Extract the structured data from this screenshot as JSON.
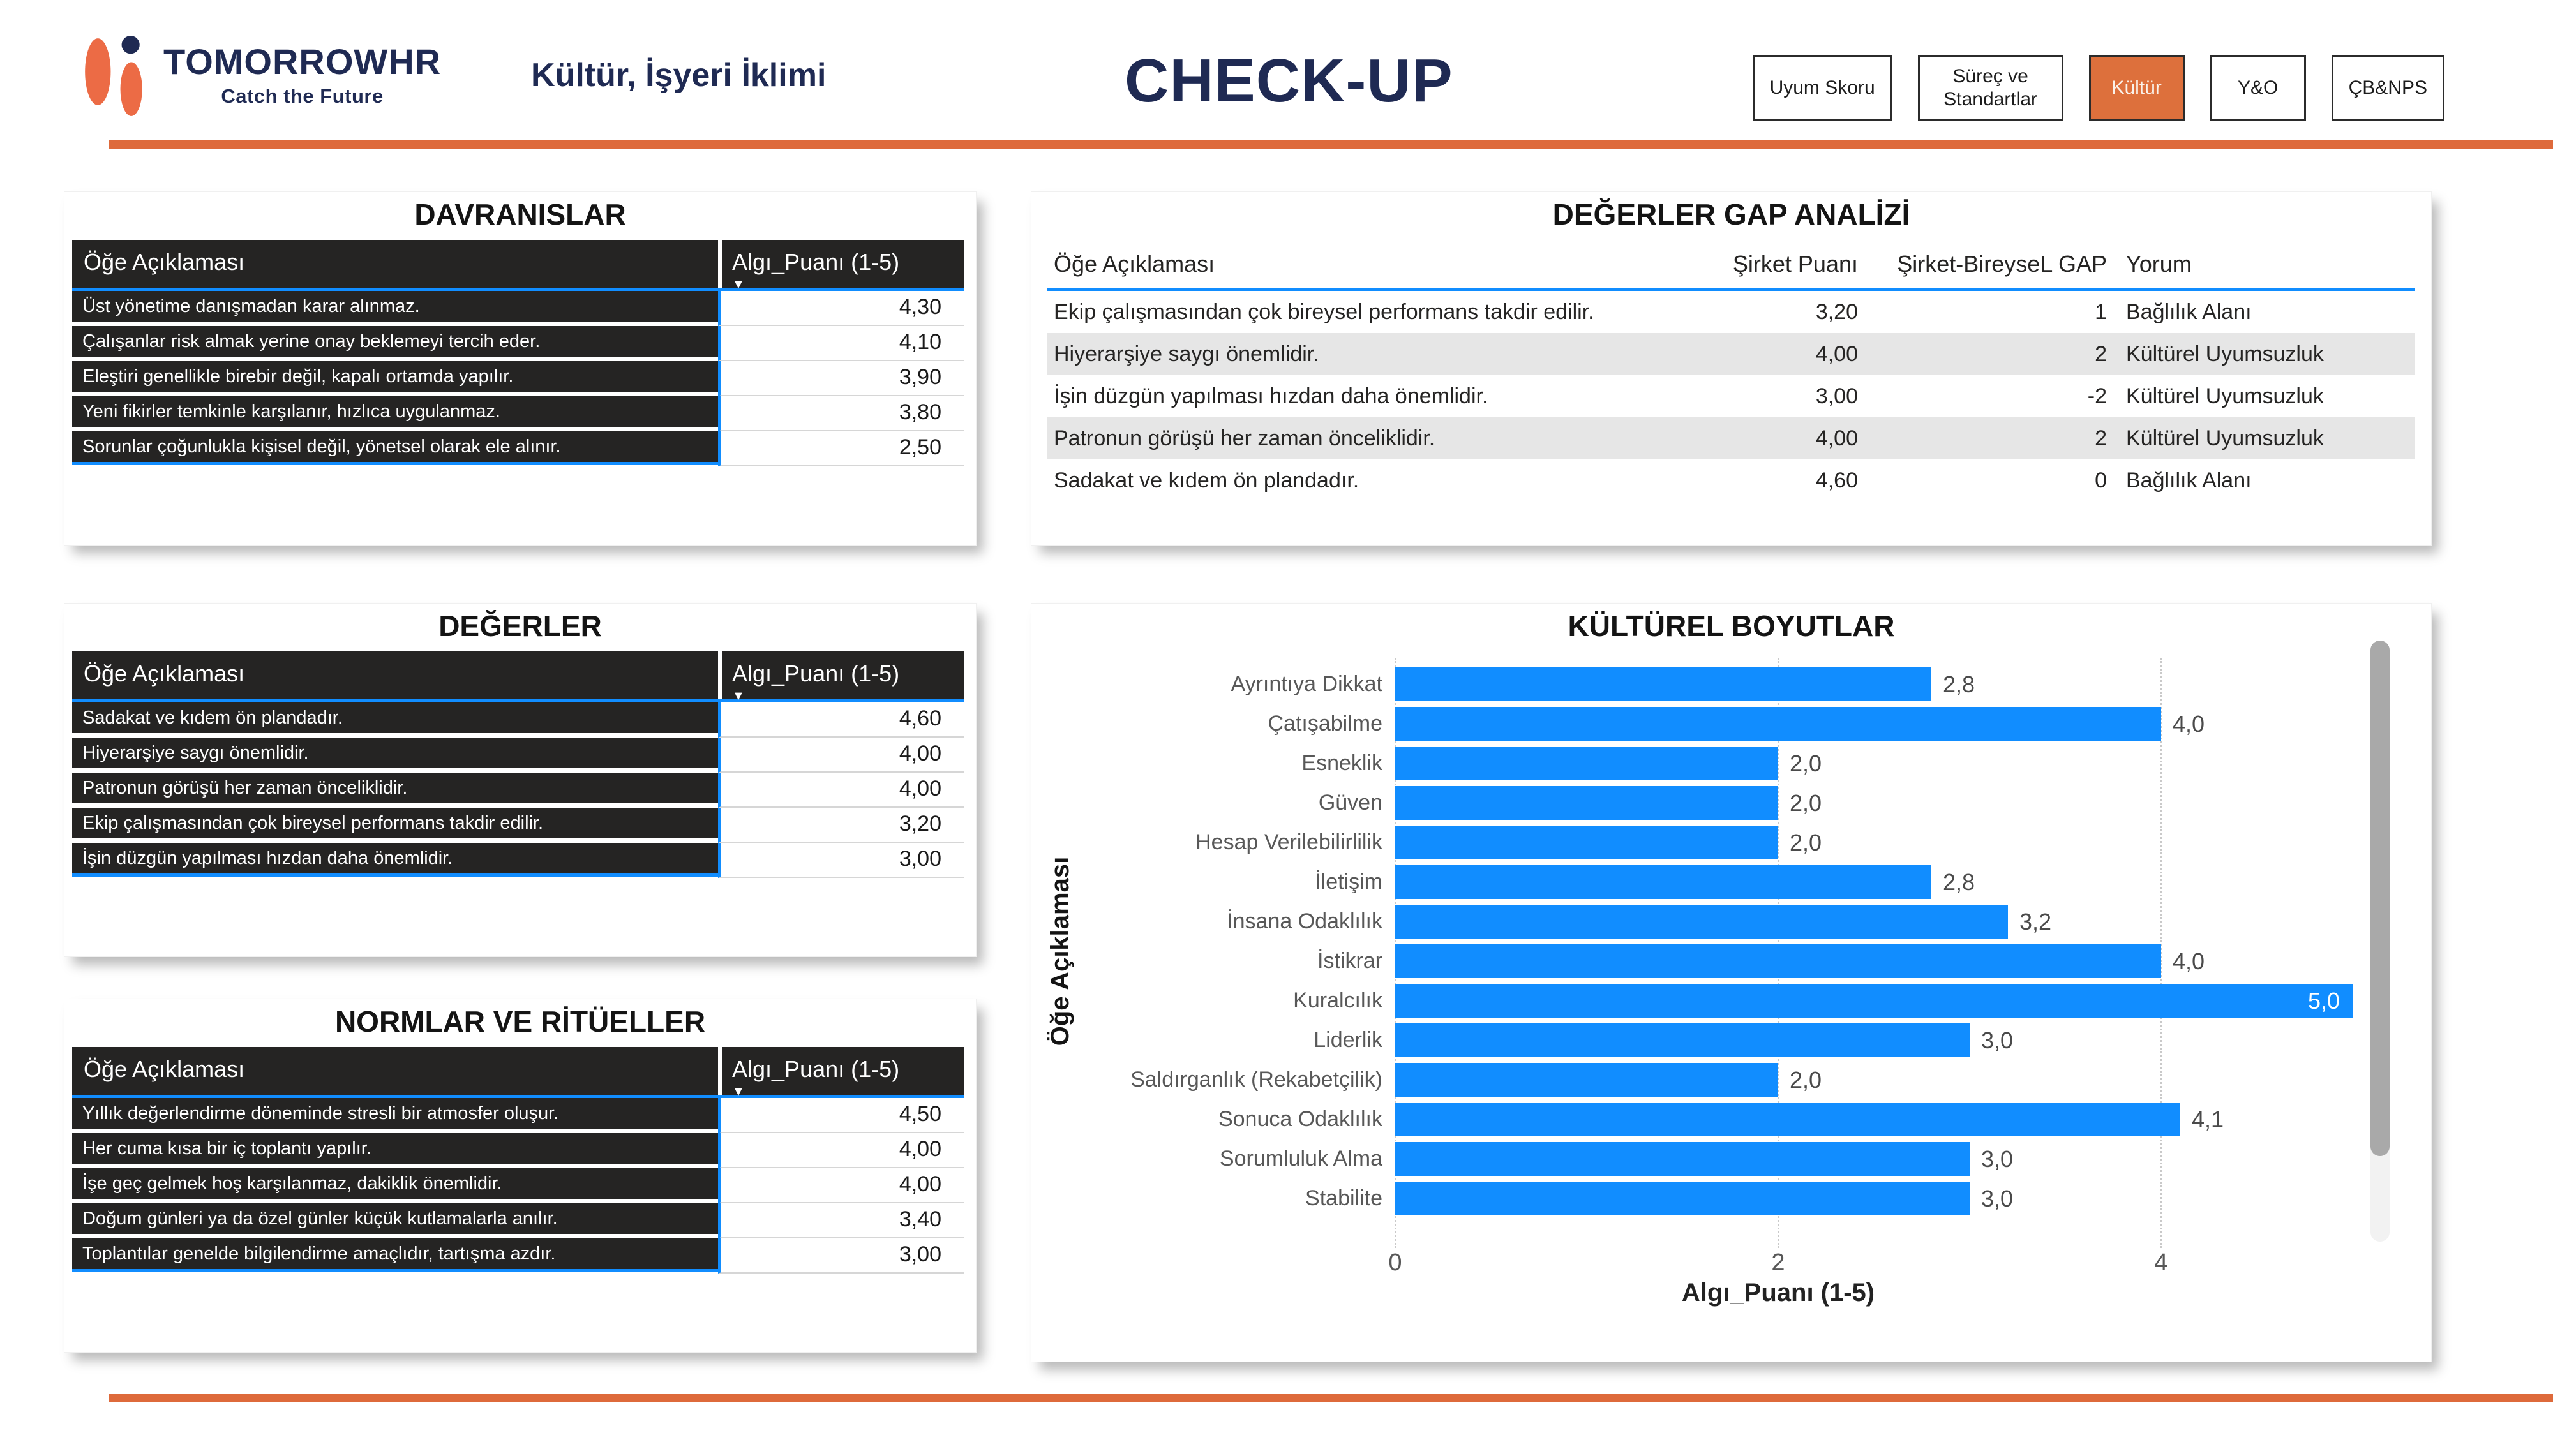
{
  "colors": {
    "navy": "#1F2A53",
    "orange": "#DE6A3B",
    "btn_orange": "#DD703C",
    "logo_orange": "#EC6B45",
    "accent_blue": "#118DFF",
    "bar_blue": "#118DFF",
    "dark_cell": "#252423",
    "alt_row": "#E6E6E6"
  },
  "header": {
    "brand": "TOMORROWHR",
    "tagline": "Catch the Future",
    "subtitle": "Kültür, İşyeri İklimi",
    "title": "CHECK-UP",
    "nav": [
      {
        "label": "Uyum Skoru",
        "active": false
      },
      {
        "label": "Süreç ve Standartlar",
        "active": false
      },
      {
        "label": "Kültür",
        "active": true
      },
      {
        "label": "Y&O",
        "active": false
      },
      {
        "label": "ÇB&NPS",
        "active": false
      }
    ]
  },
  "icons": {
    "sort_desc": "▼"
  },
  "panels": {
    "davranislar": {
      "title": "DAVRANISLAR",
      "col1": "Öğe Açıklaması",
      "col2": "Algı_Puanı (1-5)",
      "rows": [
        {
          "label": "Üst yönetime danışmadan karar alınmaz.",
          "value": "4,30"
        },
        {
          "label": "Çalışanlar risk almak yerine onay beklemeyi tercih eder.",
          "value": "4,10"
        },
        {
          "label": "Eleştiri genellikle birebir değil, kapalı ortamda yapılır.",
          "value": "3,90"
        },
        {
          "label": "Yeni fikirler temkinle karşılanır, hızlıca uygulanmaz.",
          "value": "3,80"
        },
        {
          "label": "Sorunlar çoğunlukla kişisel değil, yönetsel olarak ele alınır.",
          "value": "2,50"
        }
      ]
    },
    "degerler": {
      "title": "DEĞERLER",
      "col1": "Öğe Açıklaması",
      "col2": "Algı_Puanı (1-5)",
      "rows": [
        {
          "label": "Sadakat ve kıdem ön plandadır.",
          "value": "4,60"
        },
        {
          "label": "Hiyerarşiye saygı önemlidir.",
          "value": "4,00"
        },
        {
          "label": "Patronun görüşü her zaman önceliklidir.",
          "value": "4,00"
        },
        {
          "label": "Ekip çalışmasından çok bireysel performans takdir edilir.",
          "value": "3,20"
        },
        {
          "label": "İşin düzgün yapılması hızdan daha önemlidir.",
          "value": "3,00"
        }
      ]
    },
    "normlar": {
      "title": "NORMLAR VE RİTÜELLER",
      "col1": "Öğe Açıklaması",
      "col2": "Algı_Puanı (1-5)",
      "rows": [
        {
          "label": "Yıllık değerlendirme döneminde stresli bir atmosfer oluşur.",
          "value": "4,50"
        },
        {
          "label": "Her cuma kısa bir iç toplantı yapılır.",
          "value": "4,00"
        },
        {
          "label": "İşe geç gelmek hoş karşılanmaz, dakiklik önemlidir.",
          "value": "4,00"
        },
        {
          "label": "Doğum günleri ya da özel günler küçük kutlamalarla anılır.",
          "value": "3,40"
        },
        {
          "label": "Toplantılar genelde bilgilendirme amaçlıdır, tartışma azdır.",
          "value": "3,00"
        }
      ]
    },
    "gap": {
      "title": "DEĞERLER GAP ANALİZİ",
      "columns": [
        "Öğe Açıklaması",
        "Şirket Puanı",
        "Şirket-BireyseL GAP",
        "Yorum"
      ],
      "rows": [
        {
          "item": "Ekip çalışmasından çok bireysel performans takdir edilir.",
          "sirket": "3,20",
          "gap": "1",
          "yorum": "Bağlılık Alanı"
        },
        {
          "item": "Hiyerarşiye saygı önemlidir.",
          "sirket": "4,00",
          "gap": "2",
          "yorum": "Kültürel Uyumsuzluk"
        },
        {
          "item": "İşin düzgün yapılması hızdan daha önemlidir.",
          "sirket": "3,00",
          "gap": "-2",
          "yorum": "Kültürel Uyumsuzluk"
        },
        {
          "item": "Patronun görüşü her zaman önceliklidir.",
          "sirket": "4,00",
          "gap": "2",
          "yorum": "Kültürel Uyumsuzluk"
        },
        {
          "item": "Sadakat ve kıdem ön plandadır.",
          "sirket": "4,60",
          "gap": "0",
          "yorum": "Bağlılık Alanı"
        }
      ]
    }
  },
  "chart_data": {
    "type": "bar",
    "orientation": "horizontal",
    "title": "KÜLTÜREL BOYUTLAR",
    "xlabel": "Algı_Puanı (1-5)",
    "ylabel": "Öğe Açıklaması",
    "xlim": [
      0,
      5
    ],
    "xticks": [
      0,
      2,
      4
    ],
    "grid": "dotted-vertical",
    "bar_color": "#118DFF",
    "categories": [
      "Ayrıntıya Dikkat",
      "Çatışabilme",
      "Esneklik",
      "Güven",
      "Hesap Verilebilirlilik",
      "İletişim",
      "İnsana Odaklılık",
      "İstikrar",
      "Kuralcılık",
      "Liderlik",
      "Saldırganlık (Rekabetçilik)",
      "Sonuca Odaklılık",
      "Sorumluluk Alma",
      "Stabilite"
    ],
    "values": [
      2.8,
      4.0,
      2.0,
      2.0,
      2.0,
      2.8,
      3.2,
      4.0,
      5.0,
      3.0,
      2.0,
      4.1,
      3.0,
      3.0
    ],
    "labels": [
      "2,8",
      "4,0",
      "2,0",
      "2,0",
      "2,0",
      "2,8",
      "3,2",
      "4,0",
      "5,0",
      "3,0",
      "2,0",
      "4,1",
      "3,0",
      "3,0"
    ]
  }
}
